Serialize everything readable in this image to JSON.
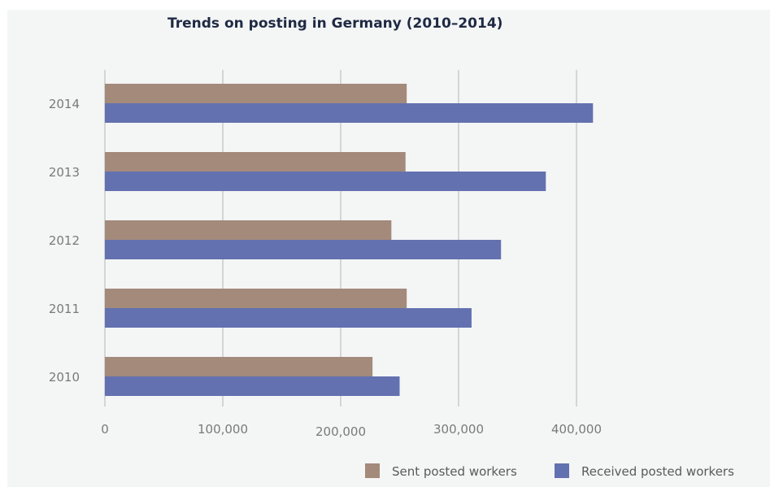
{
  "chart_data": {
    "type": "bar",
    "orientation": "horizontal",
    "title": "Trends on posting in Germany (2010–2014)",
    "xlabel": "",
    "ylabel": "",
    "categories": [
      "2014",
      "2013",
      "2012",
      "2011",
      "2010"
    ],
    "series": [
      {
        "name": "Sent posted workers",
        "color": "#a38a7b",
        "values": [
          256000,
          255000,
          243000,
          256000,
          227000
        ]
      },
      {
        "name": "Received posted workers",
        "color": "#6371b0",
        "values": [
          414000,
          374000,
          336000,
          311000,
          250000
        ]
      }
    ],
    "xlim": [
      0,
      420000
    ],
    "x_ticks": [
      0,
      100000,
      200000,
      300000,
      400000
    ],
    "x_tick_labels": [
      "0",
      "100,000",
      "200,000",
      "300,000",
      "400,000"
    ],
    "grid": "vertical",
    "legend_position": "bottom-right"
  }
}
